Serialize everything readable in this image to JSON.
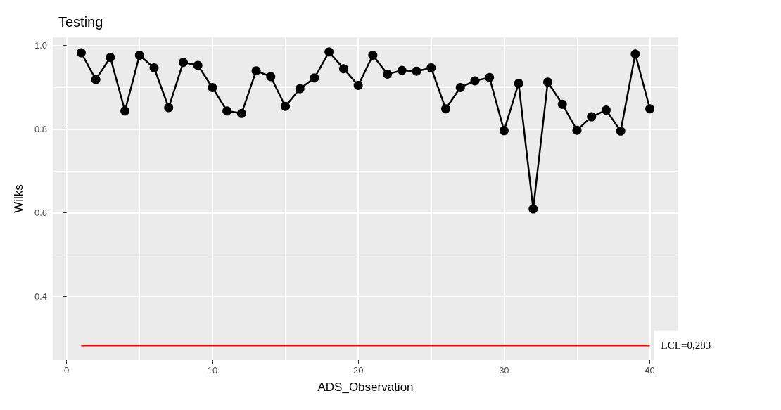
{
  "chart_data": {
    "type": "line",
    "title": "Testing",
    "xlabel": "ADS_Observation",
    "ylabel": "Wilks",
    "x": [
      1,
      2,
      3,
      4,
      5,
      6,
      7,
      8,
      9,
      10,
      11,
      12,
      13,
      14,
      15,
      16,
      17,
      18,
      19,
      20,
      21,
      22,
      23,
      24,
      25,
      26,
      27,
      28,
      29,
      30,
      31,
      32,
      33,
      34,
      35,
      36,
      37,
      38,
      39,
      40
    ],
    "series": [
      {
        "color": "#000000",
        "values": [
          0.982,
          0.918,
          0.971,
          0.843,
          0.976,
          0.946,
          0.851,
          0.959,
          0.952,
          0.899,
          0.843,
          0.837,
          0.939,
          0.925,
          0.854,
          0.896,
          0.922,
          0.984,
          0.944,
          0.904,
          0.976,
          0.931,
          0.94,
          0.938,
          0.946,
          0.848,
          0.899,
          0.915,
          0.923,
          0.796,
          0.909,
          0.609,
          0.912,
          0.859,
          0.797,
          0.829,
          0.845,
          0.795,
          0.979,
          0.848
        ]
      }
    ],
    "xlim": [
      -0.95,
      41.95
    ],
    "xticks": [
      0,
      10,
      20,
      30,
      40
    ],
    "ylim": [
      0.248,
      1.019
    ],
    "yticks": [
      {
        "value": 0.4,
        "label": "0.4"
      },
      {
        "value": 0.6,
        "label": "0.6"
      },
      {
        "value": 0.8,
        "label": "0.8"
      },
      {
        "value": 1,
        "label": "1.0"
      }
    ],
    "ref_lines": [
      {
        "axis": "y",
        "value": 0.283,
        "label": "LCL=0,283",
        "color": "#ff0000"
      }
    ],
    "grid": true,
    "marker": "circle",
    "line_style": "solid"
  }
}
